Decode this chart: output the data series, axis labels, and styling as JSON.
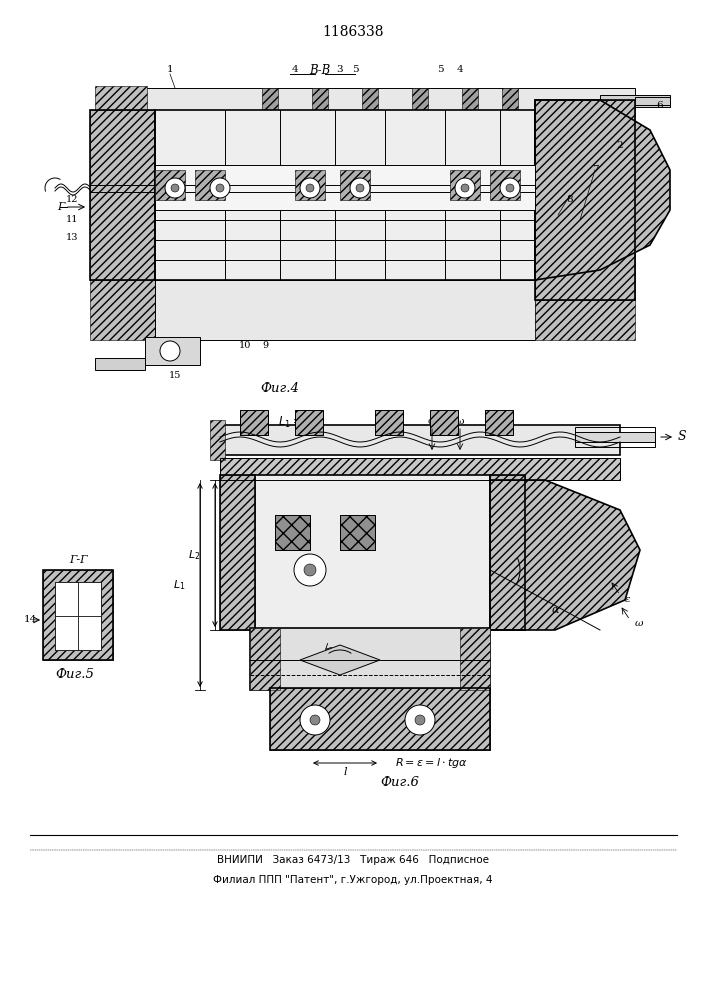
{
  "title": "1186338",
  "bg_color": "#ffffff",
  "black": "#000000",
  "gray_hatch": "#b0b0b0",
  "gray_light": "#d8d8d8",
  "bottom_text1": "ВНИИПИ   Заказ 6473/13   Тираж 646   Подписное",
  "bottom_text2": "Филиал ППП \"Патент\", г.Ужгород, ул.Проектная, 4",
  "fig4_label": "Фиг.4",
  "fig5_label": "Фиг.5",
  "fig6_label": "Фиг.6"
}
